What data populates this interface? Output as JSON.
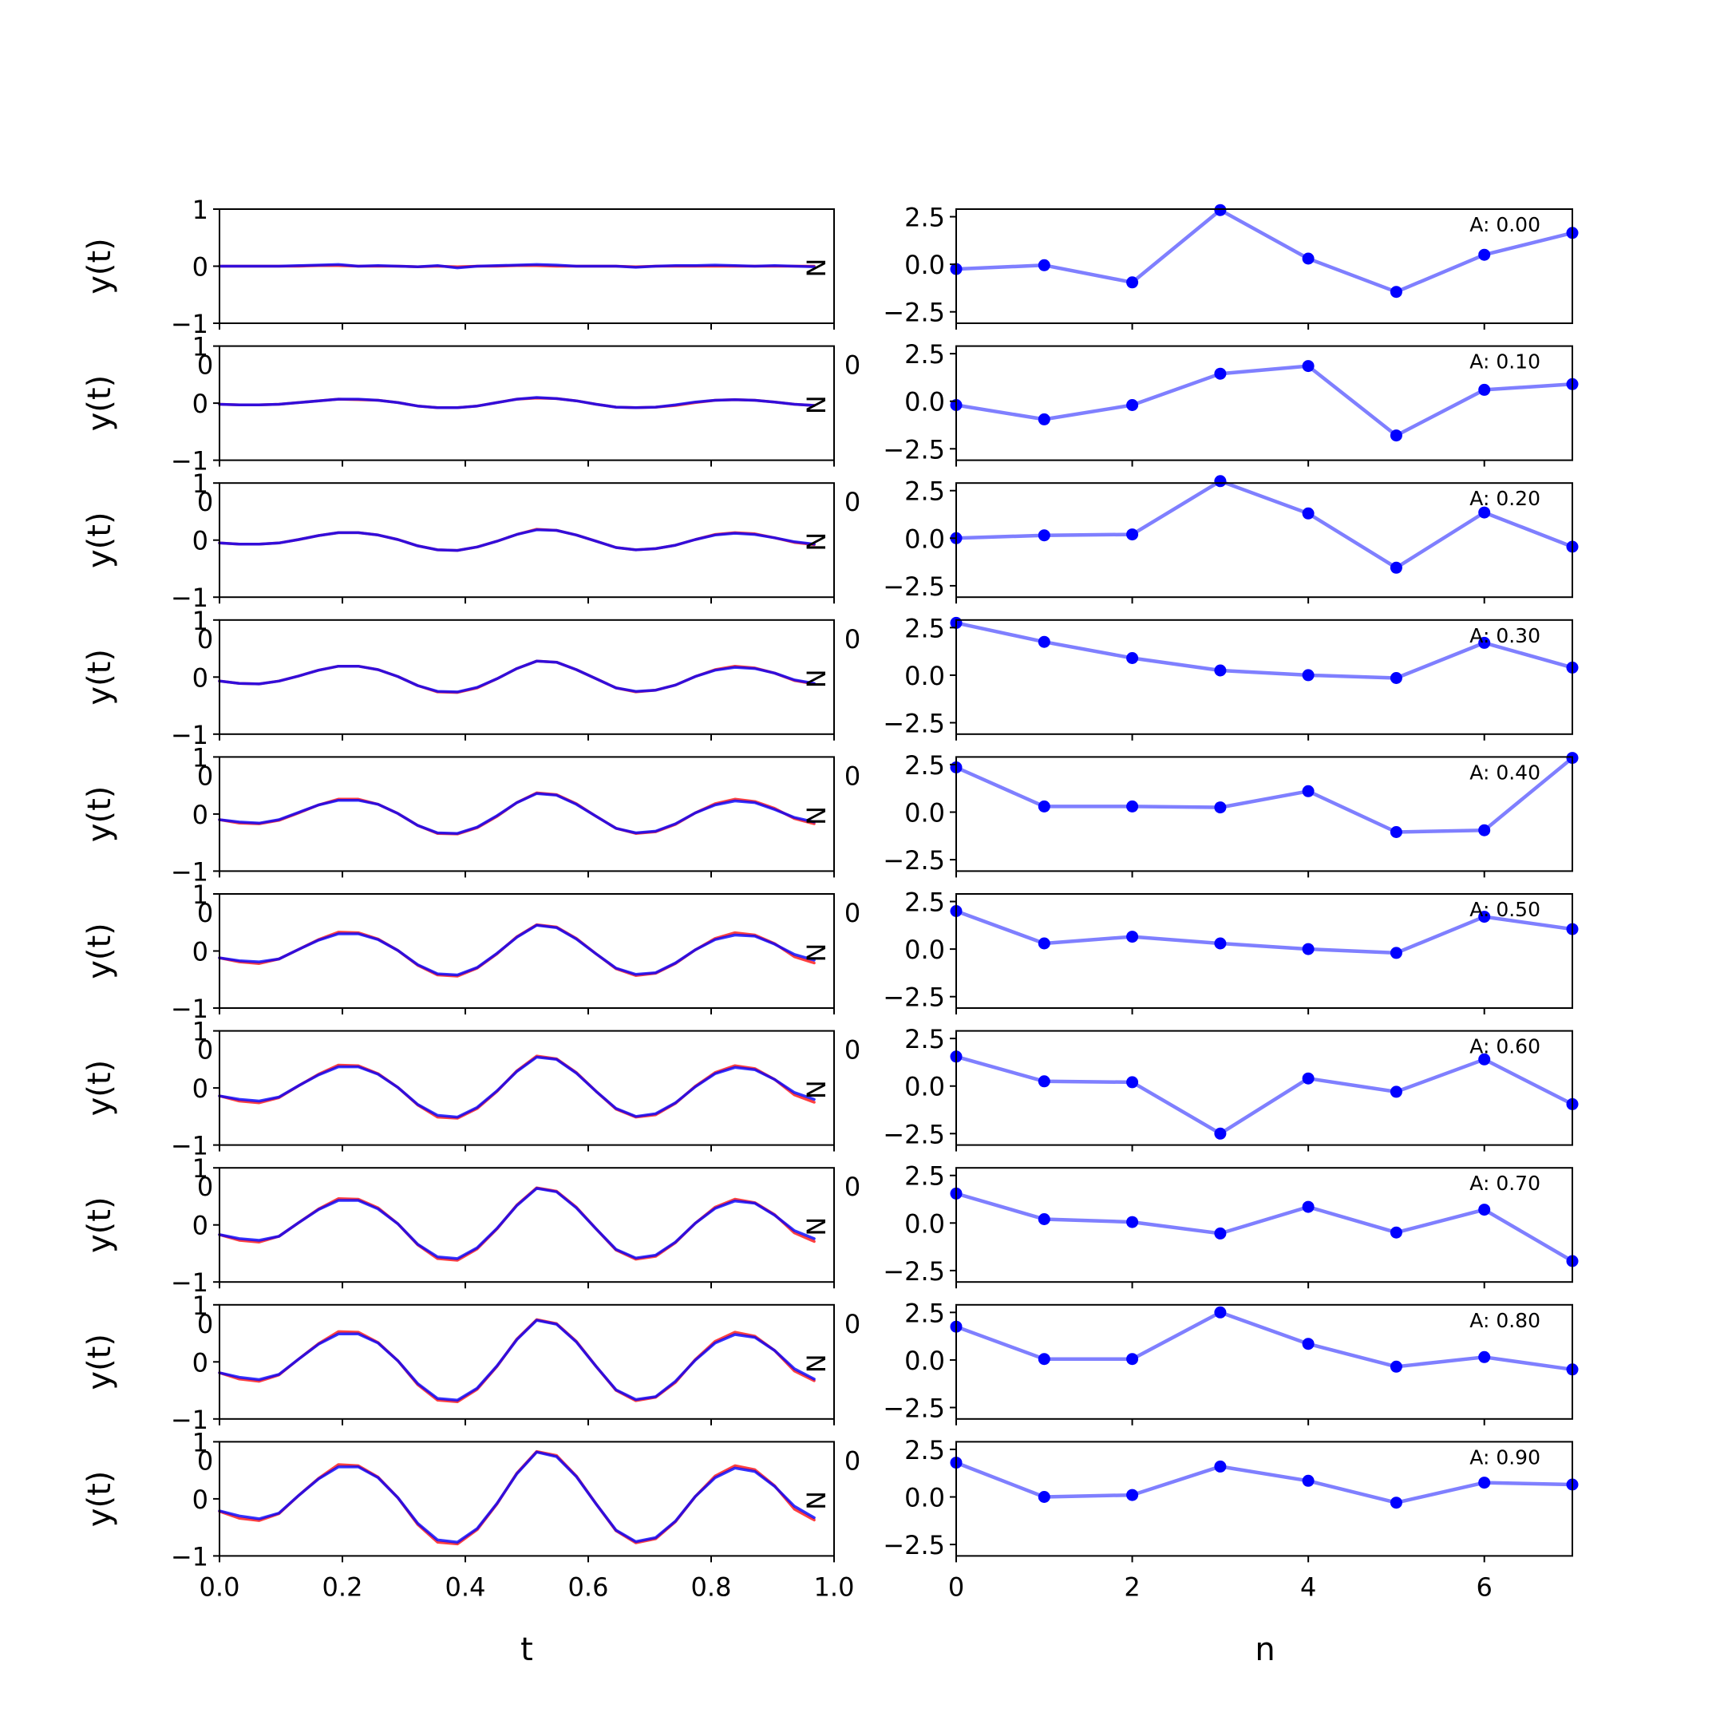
{
  "chart_data": {
    "left_column": {
      "type": "line",
      "xlabel": "t",
      "ylabel": "y(t)",
      "xlim": [
        0.0,
        1.0
      ],
      "ylim": [
        -1,
        1
      ],
      "x_ticks": [
        "0.0",
        "0.2",
        "0.4",
        "0.6",
        "0.8",
        "1.0"
      ],
      "x_tick_values": [
        0.0,
        0.2,
        0.4,
        0.6,
        0.8,
        1.0
      ],
      "y_ticks": [
        "−1",
        "0",
        "1"
      ],
      "y_tick_values": [
        -1,
        0,
        1
      ],
      "side_label": "N",
      "stray_tick_label": "0",
      "grid": false,
      "legend": "none",
      "series_colors": [
        "#ff0000",
        "#0000ff"
      ],
      "x": [
        0.0,
        0.0323,
        0.0645,
        0.0968,
        0.129,
        0.1613,
        0.1935,
        0.2258,
        0.2581,
        0.2903,
        0.3226,
        0.3548,
        0.3871,
        0.4194,
        0.4516,
        0.4839,
        0.5161,
        0.5484,
        0.5806,
        0.6129,
        0.6452,
        0.6774,
        0.7097,
        0.7419,
        0.7742,
        0.8065,
        0.8387,
        0.871,
        0.9032,
        0.9355,
        0.9677
      ],
      "panels": [
        {
          "amplitude": 0.0,
          "red": [
            0.0,
            0.0,
            0.0,
            0.0,
            0.0,
            0.01,
            0.01,
            0.0,
            0.0,
            0.0,
            -0.01,
            0.0,
            -0.01,
            0.0,
            0.0,
            0.01,
            0.01,
            0.0,
            0.0,
            0.0,
            0.0,
            -0.01,
            0.0,
            0.0,
            0.0,
            0.0,
            0.0,
            0.0,
            0.0,
            0.0,
            0.0
          ],
          "blue": [
            0.0,
            0.0,
            0.0,
            0.0,
            0.01,
            0.02,
            0.03,
            0.0,
            0.01,
            0.0,
            -0.01,
            0.01,
            -0.03,
            0.0,
            0.01,
            0.02,
            0.03,
            0.02,
            0.0,
            0.0,
            0.0,
            -0.02,
            0.0,
            0.01,
            0.01,
            0.02,
            0.01,
            0.0,
            0.01,
            0.0,
            -0.01
          ]
        },
        {
          "amplitude": 0.1,
          "red": [
            -0.02,
            -0.03,
            -0.03,
            -0.02,
            0.01,
            0.04,
            0.07,
            0.06,
            0.05,
            0.01,
            -0.05,
            -0.08,
            -0.08,
            -0.05,
            0.01,
            0.07,
            0.09,
            0.08,
            0.04,
            -0.02,
            -0.07,
            -0.08,
            -0.07,
            -0.04,
            0.01,
            0.05,
            0.06,
            0.05,
            0.02,
            -0.02,
            -0.04
          ],
          "blue": [
            -0.02,
            -0.03,
            -0.03,
            -0.02,
            0.01,
            0.04,
            0.07,
            0.07,
            0.05,
            0.01,
            -0.05,
            -0.08,
            -0.08,
            -0.05,
            0.01,
            0.07,
            0.1,
            0.08,
            0.04,
            -0.02,
            -0.07,
            -0.08,
            -0.07,
            -0.03,
            0.02,
            0.05,
            0.06,
            0.05,
            0.02,
            -0.02,
            -0.04
          ]
        },
        {
          "amplitude": 0.2,
          "red": [
            -0.05,
            -0.07,
            -0.07,
            -0.05,
            0.01,
            0.08,
            0.13,
            0.13,
            0.09,
            0.01,
            -0.1,
            -0.17,
            -0.18,
            -0.12,
            -0.02,
            0.1,
            0.19,
            0.17,
            0.09,
            -0.02,
            -0.13,
            -0.17,
            -0.15,
            -0.09,
            0.01,
            0.1,
            0.13,
            0.11,
            0.04,
            -0.04,
            -0.08
          ],
          "blue": [
            -0.05,
            -0.07,
            -0.07,
            -0.05,
            0.01,
            0.08,
            0.13,
            0.13,
            0.09,
            0.01,
            -0.1,
            -0.17,
            -0.18,
            -0.12,
            -0.02,
            0.1,
            0.18,
            0.17,
            0.09,
            -0.02,
            -0.13,
            -0.17,
            -0.15,
            -0.09,
            0.01,
            0.09,
            0.12,
            0.1,
            0.04,
            -0.03,
            -0.07
          ]
        },
        {
          "amplitude": 0.3,
          "red": [
            -0.07,
            -0.11,
            -0.12,
            -0.07,
            0.02,
            0.12,
            0.19,
            0.19,
            0.13,
            0.01,
            -0.15,
            -0.26,
            -0.27,
            -0.19,
            -0.03,
            0.15,
            0.28,
            0.26,
            0.13,
            -0.03,
            -0.19,
            -0.26,
            -0.23,
            -0.14,
            0.01,
            0.13,
            0.19,
            0.16,
            0.07,
            -0.06,
            -0.12
          ],
          "blue": [
            -0.07,
            -0.11,
            -0.12,
            -0.07,
            0.02,
            0.12,
            0.19,
            0.19,
            0.13,
            0.01,
            -0.15,
            -0.25,
            -0.26,
            -0.18,
            -0.03,
            0.15,
            0.28,
            0.26,
            0.13,
            -0.03,
            -0.19,
            -0.25,
            -0.23,
            -0.14,
            0.01,
            0.12,
            0.17,
            0.15,
            0.07,
            -0.05,
            -0.11
          ]
        },
        {
          "amplitude": 0.4,
          "red": [
            -0.1,
            -0.16,
            -0.17,
            -0.11,
            0.02,
            0.16,
            0.26,
            0.26,
            0.17,
            0.01,
            -0.2,
            -0.34,
            -0.35,
            -0.24,
            -0.04,
            0.2,
            0.37,
            0.34,
            0.18,
            -0.04,
            -0.25,
            -0.34,
            -0.31,
            -0.18,
            0.02,
            0.18,
            0.26,
            0.22,
            0.1,
            -0.08,
            -0.17
          ],
          "blue": [
            -0.1,
            -0.14,
            -0.16,
            -0.1,
            0.03,
            0.16,
            0.24,
            0.24,
            0.17,
            0.01,
            -0.2,
            -0.33,
            -0.34,
            -0.23,
            -0.03,
            0.2,
            0.36,
            0.33,
            0.17,
            -0.04,
            -0.25,
            -0.33,
            -0.3,
            -0.17,
            0.02,
            0.16,
            0.23,
            0.2,
            0.08,
            -0.06,
            -0.14
          ]
        },
        {
          "amplitude": 0.5,
          "red": [
            -0.12,
            -0.19,
            -0.22,
            -0.14,
            0.03,
            0.2,
            0.33,
            0.32,
            0.21,
            0.01,
            -0.25,
            -0.42,
            -0.44,
            -0.3,
            -0.05,
            0.25,
            0.46,
            0.42,
            0.22,
            -0.05,
            -0.31,
            -0.43,
            -0.39,
            -0.22,
            0.02,
            0.22,
            0.32,
            0.28,
            0.13,
            -0.1,
            -0.21
          ],
          "blue": [
            -0.12,
            -0.17,
            -0.19,
            -0.14,
            0.03,
            0.19,
            0.3,
            0.3,
            0.2,
            0.01,
            -0.24,
            -0.4,
            -0.42,
            -0.29,
            -0.04,
            0.24,
            0.45,
            0.41,
            0.21,
            -0.05,
            -0.3,
            -0.41,
            -0.38,
            -0.21,
            0.02,
            0.2,
            0.28,
            0.26,
            0.12,
            -0.06,
            -0.16
          ]
        },
        {
          "amplitude": 0.6,
          "red": [
            -0.14,
            -0.23,
            -0.26,
            -0.17,
            0.04,
            0.24,
            0.4,
            0.39,
            0.25,
            0.01,
            -0.3,
            -0.51,
            -0.53,
            -0.36,
            -0.06,
            0.3,
            0.56,
            0.51,
            0.27,
            -0.06,
            -0.37,
            -0.51,
            -0.47,
            -0.27,
            0.03,
            0.27,
            0.39,
            0.34,
            0.15,
            -0.12,
            -0.25
          ],
          "blue": [
            -0.14,
            -0.2,
            -0.23,
            -0.16,
            0.04,
            0.23,
            0.37,
            0.37,
            0.24,
            0.01,
            -0.29,
            -0.48,
            -0.51,
            -0.34,
            -0.05,
            0.29,
            0.54,
            0.5,
            0.26,
            -0.06,
            -0.36,
            -0.5,
            -0.45,
            -0.26,
            0.02,
            0.25,
            0.36,
            0.32,
            0.15,
            -0.08,
            -0.2
          ]
        },
        {
          "amplitude": 0.7,
          "red": [
            -0.17,
            -0.27,
            -0.3,
            -0.2,
            0.04,
            0.28,
            0.46,
            0.45,
            0.3,
            0.02,
            -0.35,
            -0.59,
            -0.62,
            -0.42,
            -0.07,
            0.35,
            0.65,
            0.59,
            0.31,
            -0.07,
            -0.44,
            -0.6,
            -0.55,
            -0.31,
            0.03,
            0.31,
            0.45,
            0.39,
            0.18,
            -0.14,
            -0.29
          ],
          "blue": [
            -0.17,
            -0.24,
            -0.27,
            -0.2,
            0.04,
            0.27,
            0.43,
            0.43,
            0.28,
            0.02,
            -0.34,
            -0.56,
            -0.59,
            -0.4,
            -0.06,
            0.34,
            0.64,
            0.58,
            0.3,
            -0.07,
            -0.43,
            -0.58,
            -0.53,
            -0.3,
            0.03,
            0.29,
            0.42,
            0.38,
            0.17,
            -0.1,
            -0.24
          ]
        },
        {
          "amplitude": 0.8,
          "red": [
            -0.19,
            -0.3,
            -0.34,
            -0.23,
            0.05,
            0.32,
            0.53,
            0.52,
            0.34,
            0.02,
            -0.4,
            -0.67,
            -0.7,
            -0.48,
            -0.08,
            0.4,
            0.74,
            0.67,
            0.36,
            -0.08,
            -0.5,
            -0.68,
            -0.62,
            -0.36,
            0.04,
            0.36,
            0.52,
            0.45,
            0.2,
            -0.16,
            -0.33
          ],
          "blue": [
            -0.19,
            -0.27,
            -0.31,
            -0.22,
            0.05,
            0.31,
            0.49,
            0.49,
            0.33,
            0.02,
            -0.38,
            -0.64,
            -0.67,
            -0.46,
            -0.07,
            0.39,
            0.73,
            0.66,
            0.35,
            -0.08,
            -0.49,
            -0.66,
            -0.61,
            -0.34,
            0.03,
            0.33,
            0.48,
            0.43,
            0.2,
            -0.12,
            -0.3
          ]
        },
        {
          "amplitude": 0.9,
          "red": [
            -0.22,
            -0.34,
            -0.38,
            -0.26,
            0.06,
            0.36,
            0.6,
            0.58,
            0.38,
            0.02,
            -0.45,
            -0.76,
            -0.79,
            -0.54,
            -0.09,
            0.45,
            0.83,
            0.76,
            0.4,
            -0.09,
            -0.56,
            -0.77,
            -0.7,
            -0.4,
            0.04,
            0.4,
            0.58,
            0.51,
            0.23,
            -0.18,
            -0.37
          ],
          "blue": [
            -0.21,
            -0.3,
            -0.35,
            -0.25,
            0.06,
            0.35,
            0.56,
            0.56,
            0.37,
            0.02,
            -0.43,
            -0.72,
            -0.76,
            -0.52,
            -0.08,
            0.44,
            0.82,
            0.74,
            0.39,
            -0.09,
            -0.55,
            -0.75,
            -0.68,
            -0.39,
            0.04,
            0.37,
            0.54,
            0.48,
            0.22,
            -0.13,
            -0.33
          ]
        }
      ]
    },
    "right_column": {
      "type": "line",
      "xlabel": "n",
      "xlim": [
        0,
        7
      ],
      "ylim": [
        -3.1,
        2.9
      ],
      "x_ticks": [
        "0",
        "2",
        "4",
        "6"
      ],
      "x_tick_values": [
        0,
        2,
        4,
        6
      ],
      "y_ticks": [
        "−2.5",
        "0.0",
        "2.5"
      ],
      "y_tick_values": [
        -2.5,
        0.0,
        2.5
      ],
      "stray_tick_label": "0",
      "grid": false,
      "legend": "none",
      "line_color": "#0000ff",
      "line_alpha": 0.5,
      "marker_color": "#0000ff",
      "x": [
        0,
        1,
        2,
        3,
        4,
        5,
        6,
        7
      ],
      "panels": [
        {
          "annotation": "A: 0.00",
          "values": [
            -0.25,
            -0.05,
            -0.95,
            2.85,
            0.3,
            -1.45,
            0.5,
            1.65
          ]
        },
        {
          "annotation": "A: 0.10",
          "values": [
            -0.2,
            -0.95,
            -0.2,
            1.45,
            1.85,
            -1.8,
            0.6,
            0.9
          ]
        },
        {
          "annotation": "A: 0.20",
          "values": [
            0.0,
            0.15,
            0.2,
            3.0,
            1.3,
            -1.55,
            1.35,
            -0.45
          ]
        },
        {
          "annotation": "A: 0.30",
          "values": [
            2.75,
            1.75,
            0.9,
            0.25,
            0.0,
            -0.15,
            1.7,
            0.4
          ]
        },
        {
          "annotation": "A: 0.40",
          "values": [
            2.35,
            0.3,
            0.3,
            0.25,
            1.1,
            -1.05,
            -0.95,
            2.85
          ]
        },
        {
          "annotation": "A: 0.50",
          "values": [
            2.0,
            0.3,
            0.65,
            0.3,
            0.0,
            -0.2,
            1.7,
            1.05
          ]
        },
        {
          "annotation": "A: 0.60",
          "values": [
            1.55,
            0.25,
            0.2,
            -2.5,
            0.4,
            -0.3,
            1.4,
            -0.95
          ]
        },
        {
          "annotation": "A: 0.70",
          "values": [
            1.55,
            0.2,
            0.05,
            -0.55,
            0.85,
            -0.5,
            0.7,
            -2.0
          ]
        },
        {
          "annotation": "A: 0.80",
          "values": [
            1.75,
            0.05,
            0.05,
            2.5,
            0.85,
            -0.35,
            0.15,
            -0.5
          ]
        },
        {
          "annotation": "A: 0.90",
          "values": [
            1.8,
            0.0,
            0.1,
            1.6,
            0.85,
            -0.3,
            0.75,
            0.65
          ]
        }
      ]
    }
  }
}
